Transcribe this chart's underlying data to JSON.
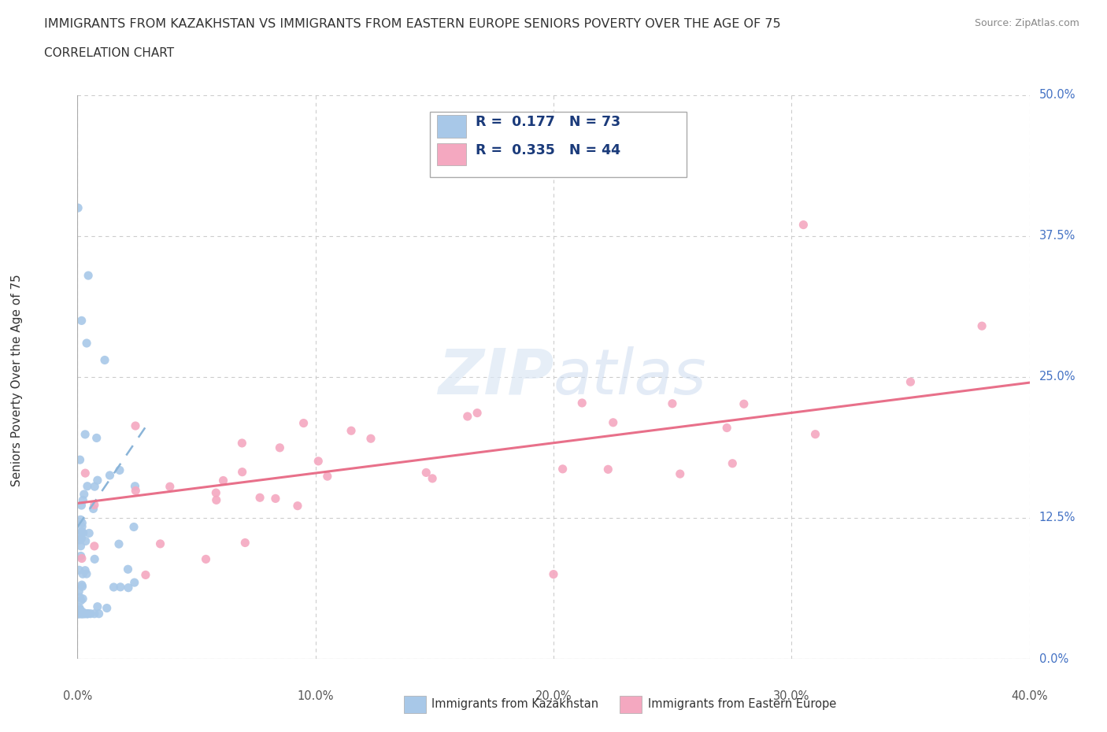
{
  "title": "IMMIGRANTS FROM KAZAKHSTAN VS IMMIGRANTS FROM EASTERN EUROPE SENIORS POVERTY OVER THE AGE OF 75",
  "subtitle": "CORRELATION CHART",
  "source": "Source: ZipAtlas.com",
  "xmin": 0.0,
  "xmax": 0.4,
  "ymin": 0.0,
  "ymax": 0.5,
  "y_ticks": [
    0.0,
    0.125,
    0.25,
    0.375,
    0.5
  ],
  "y_labels": [
    "0.0%",
    "12.5%",
    "25.0%",
    "37.5%",
    "50.0%"
  ],
  "x_ticks": [
    0.0,
    0.1,
    0.2,
    0.3,
    0.4
  ],
  "x_labels": [
    "0.0%",
    "10.0%",
    "20.0%",
    "30.0%",
    "40.0%"
  ],
  "watermark": "ZIPatlas",
  "legend_r1": "0.177",
  "legend_n1": "73",
  "legend_r2": "0.335",
  "legend_n2": "44",
  "series1_label": "Immigrants from Kazakhstan",
  "series2_label": "Immigrants from Eastern Europe",
  "color1": "#a8c8e8",
  "color2": "#f4a8c0",
  "trend1_color": "#8ab4d8",
  "trend2_color": "#e8708a",
  "ylabel": "Seniors Poverty Over the Age of 75",
  "tick_color": "#4472c4",
  "title_color": "#333333",
  "source_color": "#888888",
  "grid_color": "#cccccc",
  "axis_color": "#aaaaaa"
}
